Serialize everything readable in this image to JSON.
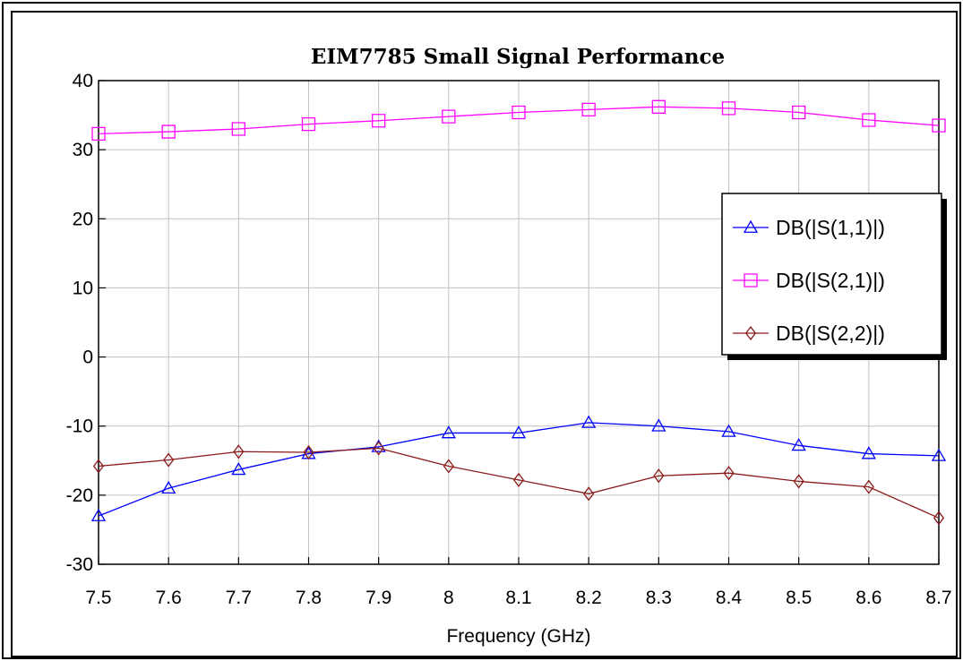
{
  "chart_data": {
    "type": "line",
    "title": "EIM7785 Small Signal Performance",
    "xlabel": "Frequency (GHz)",
    "ylabel": "",
    "x": [
      7.5,
      7.6,
      7.7,
      7.8,
      7.9,
      8.0,
      8.1,
      8.2,
      8.3,
      8.4,
      8.5,
      8.6,
      8.7
    ],
    "x_tick_labels": [
      "7.5",
      "7.6",
      "7.7",
      "7.8",
      "7.9",
      "8",
      "8.1",
      "8.2",
      "8.3",
      "8.4",
      "8.5",
      "8.6",
      "8.7"
    ],
    "y_tick_labels": [
      "40",
      "30",
      "20",
      "10",
      "0",
      "-10",
      "-20",
      "-30"
    ],
    "y_ticks": [
      40,
      30,
      20,
      10,
      0,
      -10,
      -20,
      -30
    ],
    "xlim": [
      7.5,
      8.7
    ],
    "ylim": [
      -30,
      40
    ],
    "grid": true,
    "legend_position": "right",
    "series": [
      {
        "name": "DB(|S(1,1)|)",
        "color": "#0000ff",
        "marker": "triangle",
        "values": [
          -23.0,
          -19.0,
          -16.3,
          -14.0,
          -13.0,
          -11.0,
          -11.0,
          -9.5,
          -10.0,
          -10.8,
          -12.8,
          -14.0,
          -14.3
        ]
      },
      {
        "name": "DB(|S(2,1)|)",
        "color": "#ff00ff",
        "marker": "square",
        "values": [
          32.3,
          32.6,
          33.0,
          33.7,
          34.2,
          34.8,
          35.4,
          35.8,
          36.2,
          36.0,
          35.4,
          34.3,
          33.5
        ]
      },
      {
        "name": "DB(|S(2,2)|)",
        "color": "#8b1a1a",
        "marker": "diamond",
        "values": [
          -15.8,
          -14.9,
          -13.7,
          -13.8,
          -13.2,
          -15.8,
          -17.8,
          -19.8,
          -17.2,
          -16.8,
          -18.0,
          -18.8,
          -23.3
        ]
      }
    ]
  }
}
